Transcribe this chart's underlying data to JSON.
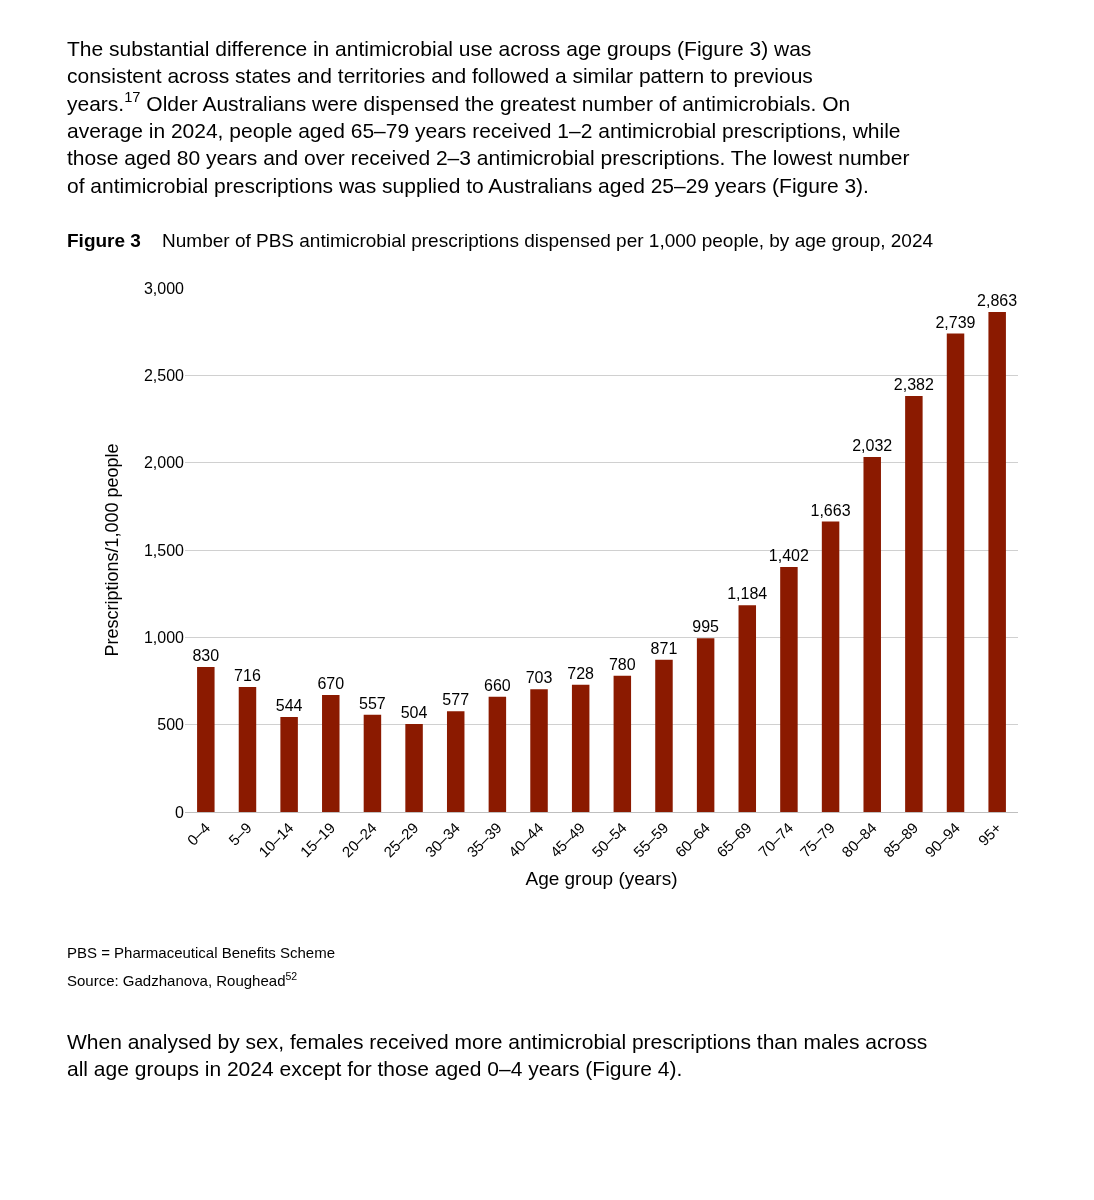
{
  "chart_data": {
    "type": "bar",
    "title": "Figure 3 Number of PBS antimicrobial prescriptions dispensed per 1,000 people, by age group, 2024",
    "xlabel": "Age group (years)",
    "ylabel": "Prescriptions/1,000 people",
    "categories": [
      "0–4",
      "5–9",
      "10–14",
      "15–19",
      "20–24",
      "25–29",
      "30–34",
      "35–39",
      "40–44",
      "45–49",
      "50–54",
      "55–59",
      "60–64",
      "65–69",
      "70–74",
      "75–79",
      "80–84",
      "85–89",
      "90–94",
      "95+"
    ],
    "values": [
      830,
      716,
      544,
      670,
      557,
      504,
      577,
      660,
      703,
      728,
      780,
      871,
      995,
      1184,
      1402,
      1663,
      2032,
      2382,
      2739,
      2863
    ],
    "value_labels": [
      "830",
      "716",
      "544",
      "670",
      "557",
      "504",
      "577",
      "660",
      "703",
      "728",
      "780",
      "871",
      "995",
      "1,184",
      "1,402",
      "1,663",
      "2,032",
      "2,382",
      "2,739",
      "2,863"
    ],
    "color": "#8b1a00",
    "ylim": [
      0,
      3000
    ],
    "yticks": [
      {
        "value": 0,
        "label": "0"
      },
      {
        "value": 500,
        "label": "500"
      },
      {
        "value": 1000,
        "label": "1,000"
      },
      {
        "value": 1500,
        "label": "1,500"
      },
      {
        "value": 2000,
        "label": "2,000"
      },
      {
        "value": 2500,
        "label": "2,500"
      },
      {
        "value": 3000,
        "label": "3,000"
      }
    ],
    "grid": "y",
    "legend": false,
    "annotations": [
      "The substantial difference in antimicrobial use across age groups (Figure 3) was consistent across states and territories and followed a similar pattern to previous years.$^{17}$ Older Australians were dispensed the greatest number of antimicrobials. On average in 2024, people aged 65–79 years received 1–2 antimicrobial prescriptions, while those aged 80 years and over received 2–3 antimicrobial prescriptions. The lowest number of antimicrobial prescriptions was supplied to Australians aged 25–29 years (Figure 3).",
      "PBS = Pharmaceutical Benefits Scheme",
      "Source: Gadzhanova, Roughead$^{52}$",
      "When analysed by sex, females received more antimicrobial prescriptions than males across all age groups in 2024 except for those aged 0–4 years (Figure 4)."
    ]
  }
}
